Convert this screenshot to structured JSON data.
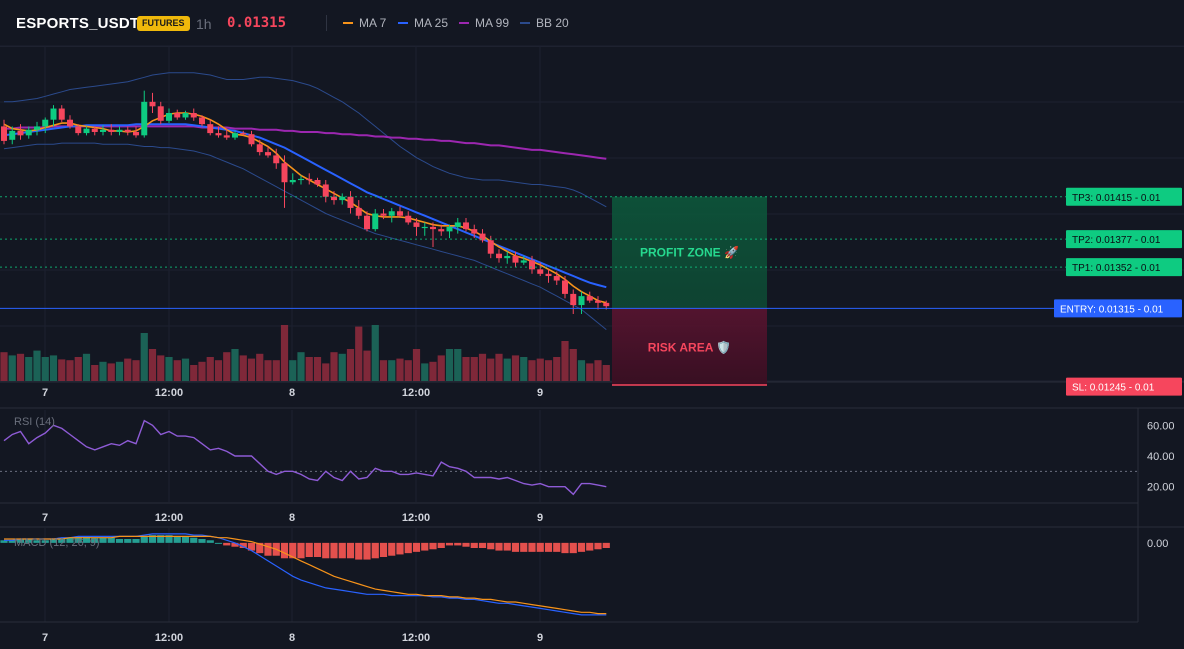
{
  "header": {
    "symbol": "ESPORTS_USDT",
    "badge": "FUTURES",
    "interval": "1h",
    "price": "0.01315"
  },
  "legend": [
    {
      "label": "MA 7",
      "color": "#f7931a"
    },
    {
      "label": "MA 25",
      "color": "#2962ff"
    },
    {
      "label": "MA 99",
      "color": "#9c27b0"
    },
    {
      "label": "BB 20",
      "color": "#2b4a8c"
    }
  ],
  "zones": {
    "profit_label": "PROFIT ZONE 🚀",
    "risk_label": "RISK AREA 🛡️"
  },
  "levels": [
    {
      "label": "TP3: 0.01415",
      "suffix": "- 0.01",
      "price": 0.01415,
      "kind": "tp"
    },
    {
      "label": "TP2: 0.01377",
      "suffix": "- 0.01",
      "price": 0.01377,
      "kind": "tp"
    },
    {
      "label": "TP1: 0.01352",
      "suffix": "- 0.01",
      "price": 0.01352,
      "kind": "tp"
    },
    {
      "label": "ENTRY: 0.01315",
      "suffix": "- 0.01",
      "price": 0.01315,
      "kind": "entry"
    },
    {
      "label": "SL: 0.01245",
      "suffix": "- 0.01",
      "price": 0.01245,
      "kind": "sl"
    }
  ],
  "x_ticks": [
    "7",
    "12:00",
    "8",
    "12:00",
    "9"
  ],
  "rsi": {
    "label": "RSI (14)",
    "ticks": [
      "60.00",
      "40.00",
      "20.00"
    ]
  },
  "macd": {
    "label": "MACD (12, 26, 9)",
    "ticks": [
      "0.00"
    ]
  },
  "chart_data": {
    "type": "candlestick",
    "interval": "1h",
    "price_ylim": [
      0.0125,
      0.0155
    ],
    "candles_ohlc": [
      [
        0.01478,
        0.01484,
        0.01462,
        0.01465
      ],
      [
        0.01466,
        0.01478,
        0.01462,
        0.01474
      ],
      [
        0.01474,
        0.0148,
        0.01466,
        0.0147
      ],
      [
        0.0147,
        0.01478,
        0.01467,
        0.01475
      ],
      [
        0.01475,
        0.01482,
        0.0147,
        0.01478
      ],
      [
        0.01478,
        0.01486,
        0.01472,
        0.01484
      ],
      [
        0.01484,
        0.01497,
        0.01478,
        0.01494
      ],
      [
        0.01494,
        0.01497,
        0.01482,
        0.01484
      ],
      [
        0.01484,
        0.01488,
        0.01476,
        0.01478
      ],
      [
        0.01478,
        0.0148,
        0.0147,
        0.01472
      ],
      [
        0.01472,
        0.01478,
        0.0147,
        0.01476
      ],
      [
        0.01476,
        0.01478,
        0.0147,
        0.01473
      ],
      [
        0.01473,
        0.01479,
        0.0147,
        0.01475
      ],
      [
        0.01475,
        0.0148,
        0.0147,
        0.01473
      ],
      [
        0.01473,
        0.01478,
        0.0147,
        0.01475
      ],
      [
        0.01475,
        0.01478,
        0.0147,
        0.01473
      ],
      [
        0.01473,
        0.01478,
        0.01468,
        0.0147
      ],
      [
        0.0147,
        0.0151,
        0.01468,
        0.015
      ],
      [
        0.015,
        0.01508,
        0.0149,
        0.01496
      ],
      [
        0.01496,
        0.015,
        0.0148,
        0.01483
      ],
      [
        0.01483,
        0.01494,
        0.01481,
        0.0149
      ],
      [
        0.0149,
        0.01493,
        0.01484,
        0.01486
      ],
      [
        0.01486,
        0.01492,
        0.01484,
        0.0149
      ],
      [
        0.0149,
        0.01494,
        0.01483,
        0.01486
      ],
      [
        0.01486,
        0.01488,
        0.01478,
        0.0148
      ],
      [
        0.0148,
        0.01484,
        0.0147,
        0.01472
      ],
      [
        0.01472,
        0.01478,
        0.01468,
        0.0147
      ],
      [
        0.0147,
        0.01476,
        0.01466,
        0.01468
      ],
      [
        0.01468,
        0.01474,
        0.01466,
        0.01472
      ],
      [
        0.01472,
        0.01474,
        0.0147,
        0.01471
      ],
      [
        0.01471,
        0.01474,
        0.0146,
        0.01462
      ],
      [
        0.01462,
        0.01466,
        0.01452,
        0.01455
      ],
      [
        0.01455,
        0.0146,
        0.0145,
        0.01452
      ],
      [
        0.01452,
        0.01458,
        0.0144,
        0.01445
      ],
      [
        0.01445,
        0.01452,
        0.01405,
        0.01428
      ],
      [
        0.01428,
        0.01436,
        0.01426,
        0.0143
      ],
      [
        0.0143,
        0.01434,
        0.01426,
        0.01431
      ],
      [
        0.01431,
        0.01436,
        0.01426,
        0.0143
      ],
      [
        0.0143,
        0.01432,
        0.01424,
        0.01426
      ],
      [
        0.01426,
        0.0143,
        0.0141,
        0.01415
      ],
      [
        0.01415,
        0.0142,
        0.01408,
        0.01412
      ],
      [
        0.01412,
        0.01418,
        0.01408,
        0.01415
      ],
      [
        0.01415,
        0.0142,
        0.014,
        0.01405
      ],
      [
        0.01405,
        0.01412,
        0.01395,
        0.01398
      ],
      [
        0.01398,
        0.01402,
        0.01384,
        0.01386
      ],
      [
        0.01386,
        0.01404,
        0.01384,
        0.014
      ],
      [
        0.014,
        0.01404,
        0.01395,
        0.01398
      ],
      [
        0.01398,
        0.01405,
        0.01392,
        0.01402
      ],
      [
        0.01402,
        0.01406,
        0.01396,
        0.01398
      ],
      [
        0.01398,
        0.01402,
        0.0139,
        0.01392
      ],
      [
        0.01392,
        0.01396,
        0.0138,
        0.01388
      ],
      [
        0.01388,
        0.01392,
        0.0138,
        0.01388
      ],
      [
        0.01388,
        0.01392,
        0.0137,
        0.01386
      ],
      [
        0.01386,
        0.0139,
        0.0138,
        0.01384
      ],
      [
        0.01384,
        0.0139,
        0.01378,
        0.01388
      ],
      [
        0.01388,
        0.01396,
        0.01382,
        0.01392
      ],
      [
        0.01392,
        0.01396,
        0.01384,
        0.01386
      ],
      [
        0.01386,
        0.0139,
        0.01378,
        0.01382
      ],
      [
        0.01382,
        0.01386,
        0.01374,
        0.01376
      ],
      [
        0.01376,
        0.0138,
        0.0136,
        0.01364
      ],
      [
        0.01364,
        0.01368,
        0.01356,
        0.0136
      ],
      [
        0.0136,
        0.01366,
        0.01355,
        0.01362
      ],
      [
        0.01362,
        0.01366,
        0.01352,
        0.01356
      ],
      [
        0.01356,
        0.01362,
        0.01354,
        0.01358
      ],
      [
        0.01358,
        0.01362,
        0.01346,
        0.0135
      ],
      [
        0.0135,
        0.01356,
        0.01344,
        0.01346
      ],
      [
        0.01346,
        0.0135,
        0.01338,
        0.01344
      ],
      [
        0.01344,
        0.01348,
        0.01336,
        0.0134
      ],
      [
        0.0134,
        0.01344,
        0.01324,
        0.01328
      ],
      [
        0.01328,
        0.01332,
        0.0131,
        0.01318
      ],
      [
        0.01318,
        0.0133,
        0.0131,
        0.01326
      ],
      [
        0.01326,
        0.0133,
        0.0132,
        0.01322
      ],
      [
        0.01322,
        0.01326,
        0.01314,
        0.0132
      ],
      [
        0.0132,
        0.01322,
        0.01314,
        0.01317
      ]
    ],
    "volume": [
      36,
      32,
      34,
      30,
      38,
      30,
      32,
      27,
      26,
      30,
      34,
      20,
      24,
      22,
      24,
      28,
      26,
      60,
      40,
      32,
      30,
      26,
      28,
      20,
      24,
      30,
      26,
      36,
      40,
      32,
      28,
      34,
      26,
      26,
      70,
      26,
      36,
      30,
      30,
      22,
      36,
      34,
      40,
      68,
      38,
      70,
      26,
      26,
      28,
      26,
      40,
      22,
      24,
      32,
      40,
      40,
      30,
      30,
      34,
      28,
      34,
      28,
      32,
      30,
      26,
      28,
      26,
      30,
      50,
      40,
      26,
      22,
      26,
      20
    ],
    "ma7": [
      0.0148,
      0.01476,
      0.01475,
      0.01474,
      0.01475,
      0.01477,
      0.01479,
      0.01481,
      0.01481,
      0.01479,
      0.01478,
      0.01477,
      0.01476,
      0.01474,
      0.01474,
      0.01473,
      0.01474,
      0.01478,
      0.01483,
      0.01486,
      0.01489,
      0.0149,
      0.0149,
      0.01489,
      0.01487,
      0.01484,
      0.0148,
      0.01475,
      0.01471,
      0.0147,
      0.01468,
      0.01464,
      0.0146,
      0.01454,
      0.01446,
      0.0144,
      0.01434,
      0.0143,
      0.01426,
      0.01422,
      0.01418,
      0.01414,
      0.0141,
      0.01405,
      0.014,
      0.01398,
      0.01397,
      0.01397,
      0.01397,
      0.01396,
      0.01394,
      0.01392,
      0.0139,
      0.01389,
      0.01389,
      0.01389,
      0.01387,
      0.01384,
      0.0138,
      0.01375,
      0.0137,
      0.01366,
      0.01362,
      0.0136,
      0.01357,
      0.01354,
      0.0135,
      0.01346,
      0.01341,
      0.01335,
      0.0133,
      0.01326,
      0.01322,
      0.0132
    ],
    "ma25": [
      0.0147,
      0.01471,
      0.01472,
      0.01473,
      0.01474,
      0.01475,
      0.01476,
      0.01477,
      0.01478,
      0.01478,
      0.01479,
      0.01479,
      0.01479,
      0.01479,
      0.01479,
      0.01479,
      0.0148,
      0.0148,
      0.0148,
      0.0148,
      0.0148,
      0.0148,
      0.0148,
      0.01479,
      0.01478,
      0.01477,
      0.01476,
      0.01475,
      0.01474,
      0.01472,
      0.0147,
      0.01468,
      0.01465,
      0.01462,
      0.01459,
      0.01455,
      0.01451,
      0.01447,
      0.01443,
      0.01439,
      0.01435,
      0.01431,
      0.01427,
      0.01423,
      0.01419,
      0.01416,
      0.01413,
      0.0141,
      0.01407,
      0.01404,
      0.01401,
      0.01398,
      0.01395,
      0.01392,
      0.01389,
      0.01386,
      0.01383,
      0.0138,
      0.01377,
      0.01374,
      0.01371,
      0.01368,
      0.01365,
      0.01362,
      0.01359,
      0.01356,
      0.01353,
      0.0135,
      0.01347,
      0.01344,
      0.01341,
      0.01338,
      0.01336,
      0.01334
    ],
    "ma99": [
      0.01476,
      0.01476,
      0.01477,
      0.01477,
      0.01477,
      0.01477,
      0.01478,
      0.01478,
      0.01478,
      0.01478,
      0.01478,
      0.01478,
      0.01478,
      0.01478,
      0.01478,
      0.01478,
      0.01478,
      0.01478,
      0.01478,
      0.01478,
      0.01478,
      0.01478,
      0.01478,
      0.01478,
      0.01477,
      0.01477,
      0.01477,
      0.01477,
      0.01476,
      0.01476,
      0.01476,
      0.01475,
      0.01475,
      0.01475,
      0.01474,
      0.01474,
      0.01473,
      0.01473,
      0.01473,
      0.01472,
      0.01472,
      0.01471,
      0.01471,
      0.0147,
      0.0147,
      0.01469,
      0.01469,
      0.01468,
      0.01468,
      0.01467,
      0.01467,
      0.01466,
      0.01466,
      0.01465,
      0.01465,
      0.01464,
      0.01463,
      0.01463,
      0.01462,
      0.01461,
      0.01461,
      0.0146,
      0.01459,
      0.01458,
      0.01457,
      0.01457,
      0.01456,
      0.01455,
      0.01454,
      0.01453,
      0.01452,
      0.01451,
      0.0145,
      0.01449
    ],
    "bb_upper": [
      0.015,
      0.015,
      0.01501,
      0.01502,
      0.01503,
      0.01505,
      0.01507,
      0.01509,
      0.01511,
      0.01512,
      0.01513,
      0.01514,
      0.01515,
      0.01516,
      0.01517,
      0.01518,
      0.0152,
      0.01522,
      0.01524,
      0.01525,
      0.01526,
      0.01526,
      0.01526,
      0.01526,
      0.01525,
      0.01524,
      0.01522,
      0.0152,
      0.0152,
      0.0152,
      0.01521,
      0.01522,
      0.01522,
      0.01521,
      0.0152,
      0.01519,
      0.01517,
      0.01515,
      0.01512,
      0.01508,
      0.01504,
      0.015,
      0.01495,
      0.0149,
      0.01484,
      0.01478,
      0.01472,
      0.01466,
      0.0146,
      0.01455,
      0.0145,
      0.01446,
      0.01442,
      0.01439,
      0.01436,
      0.01434,
      0.01432,
      0.01431,
      0.0143,
      0.0143,
      0.0143,
      0.01429,
      0.01428,
      0.01427,
      0.01426,
      0.01426,
      0.01425,
      0.01424,
      0.01423,
      0.01421,
      0.01418,
      0.01414,
      0.0141,
      0.01406
    ],
    "bb_lower": [
      0.01458,
      0.01459,
      0.0146,
      0.01461,
      0.01462,
      0.01462,
      0.01462,
      0.01463,
      0.01463,
      0.01463,
      0.01463,
      0.01463,
      0.01462,
      0.01462,
      0.01462,
      0.01462,
      0.01461,
      0.0146,
      0.0146,
      0.01459,
      0.01459,
      0.01458,
      0.01457,
      0.01456,
      0.01454,
      0.01452,
      0.01449,
      0.01446,
      0.01443,
      0.0144,
      0.01436,
      0.01432,
      0.01428,
      0.01424,
      0.0142,
      0.01416,
      0.01412,
      0.01408,
      0.01404,
      0.014,
      0.01397,
      0.01394,
      0.01391,
      0.01388,
      0.01385,
      0.01382,
      0.0138,
      0.01378,
      0.01376,
      0.01374,
      0.01372,
      0.0137,
      0.01368,
      0.01366,
      0.01364,
      0.01362,
      0.0136,
      0.01358,
      0.01355,
      0.01352,
      0.01349,
      0.01346,
      0.01343,
      0.0134,
      0.01337,
      0.01334,
      0.0133,
      0.01326,
      0.01322,
      0.01318,
      0.01314,
      0.01308,
      0.01302,
      0.01296
    ],
    "rsi": [
      50,
      54,
      56,
      48,
      52,
      55,
      60,
      58,
      54,
      50,
      46,
      44,
      46,
      48,
      47,
      50,
      48,
      63,
      60,
      54,
      56,
      53,
      53,
      52,
      48,
      44,
      45,
      43,
      40,
      40,
      40,
      35,
      30,
      28,
      30,
      30,
      28,
      25,
      24,
      30,
      26,
      24,
      30,
      25,
      26,
      32,
      30,
      30,
      28,
      28,
      29,
      28,
      27,
      36,
      33,
      32,
      30,
      26,
      26,
      26,
      25,
      26,
      24,
      22,
      21,
      22,
      20,
      20,
      20,
      15,
      22,
      22,
      21,
      20
    ],
    "rsi_ylim": [
      10,
      70
    ],
    "rsi_reference": 30,
    "macd_hist": [
      2,
      2,
      3,
      3,
      2,
      2,
      3,
      4,
      4,
      5,
      5,
      4,
      4,
      4,
      3,
      3,
      3,
      5,
      6,
      6,
      6,
      5,
      5,
      4,
      3,
      2,
      0,
      -2,
      -3,
      -4,
      -6,
      -8,
      -10,
      -10,
      -12,
      -12,
      -12,
      -11,
      -11,
      -12,
      -12,
      -12,
      -12,
      -13,
      -13,
      -12,
      -11,
      -10,
      -9,
      -8,
      -7,
      -6,
      -5,
      -4,
      -2,
      -2,
      -3,
      -4,
      -4,
      -5,
      -6,
      -6,
      -7,
      -7,
      -7,
      -7,
      -7,
      -7,
      -8,
      -8,
      -7,
      -6,
      -5,
      -4
    ],
    "macd_line": [
      2,
      2,
      3,
      3,
      3,
      3,
      3,
      4,
      4,
      5,
      5,
      5,
      5,
      5,
      5,
      5,
      5,
      6,
      7,
      7,
      7,
      7,
      7,
      6,
      6,
      5,
      4,
      2,
      0,
      -3,
      -6,
      -10,
      -14,
      -18,
      -22,
      -26,
      -29,
      -31,
      -33,
      -35,
      -36,
      -37,
      -38,
      -39,
      -40,
      -40,
      -40,
      -41,
      -41,
      -41,
      -41,
      -41,
      -42,
      -42,
      -43,
      -43,
      -44,
      -44,
      -45,
      -46,
      -47,
      -47,
      -48,
      -49,
      -50,
      -51,
      -52,
      -53,
      -54,
      -55,
      -56,
      -56,
      -56,
      -56
    ],
    "signal_line": [
      3,
      3,
      3,
      3,
      3,
      3,
      3,
      3,
      4,
      4,
      4,
      4,
      4,
      4,
      5,
      5,
      5,
      5,
      5,
      5,
      5,
      5,
      5,
      5,
      5,
      5,
      4,
      4,
      3,
      2,
      1,
      -1,
      -3,
      -5,
      -8,
      -11,
      -14,
      -17,
      -20,
      -23,
      -26,
      -28,
      -30,
      -32,
      -34,
      -36,
      -37,
      -38,
      -39,
      -40,
      -40,
      -41,
      -41,
      -41,
      -42,
      -42,
      -43,
      -43,
      -44,
      -44,
      -45,
      -46,
      -46,
      -47,
      -48,
      -49,
      -50,
      -51,
      -52,
      -53,
      -54,
      -54,
      -55,
      -55
    ],
    "macd_ylim": [
      -60,
      10
    ]
  }
}
